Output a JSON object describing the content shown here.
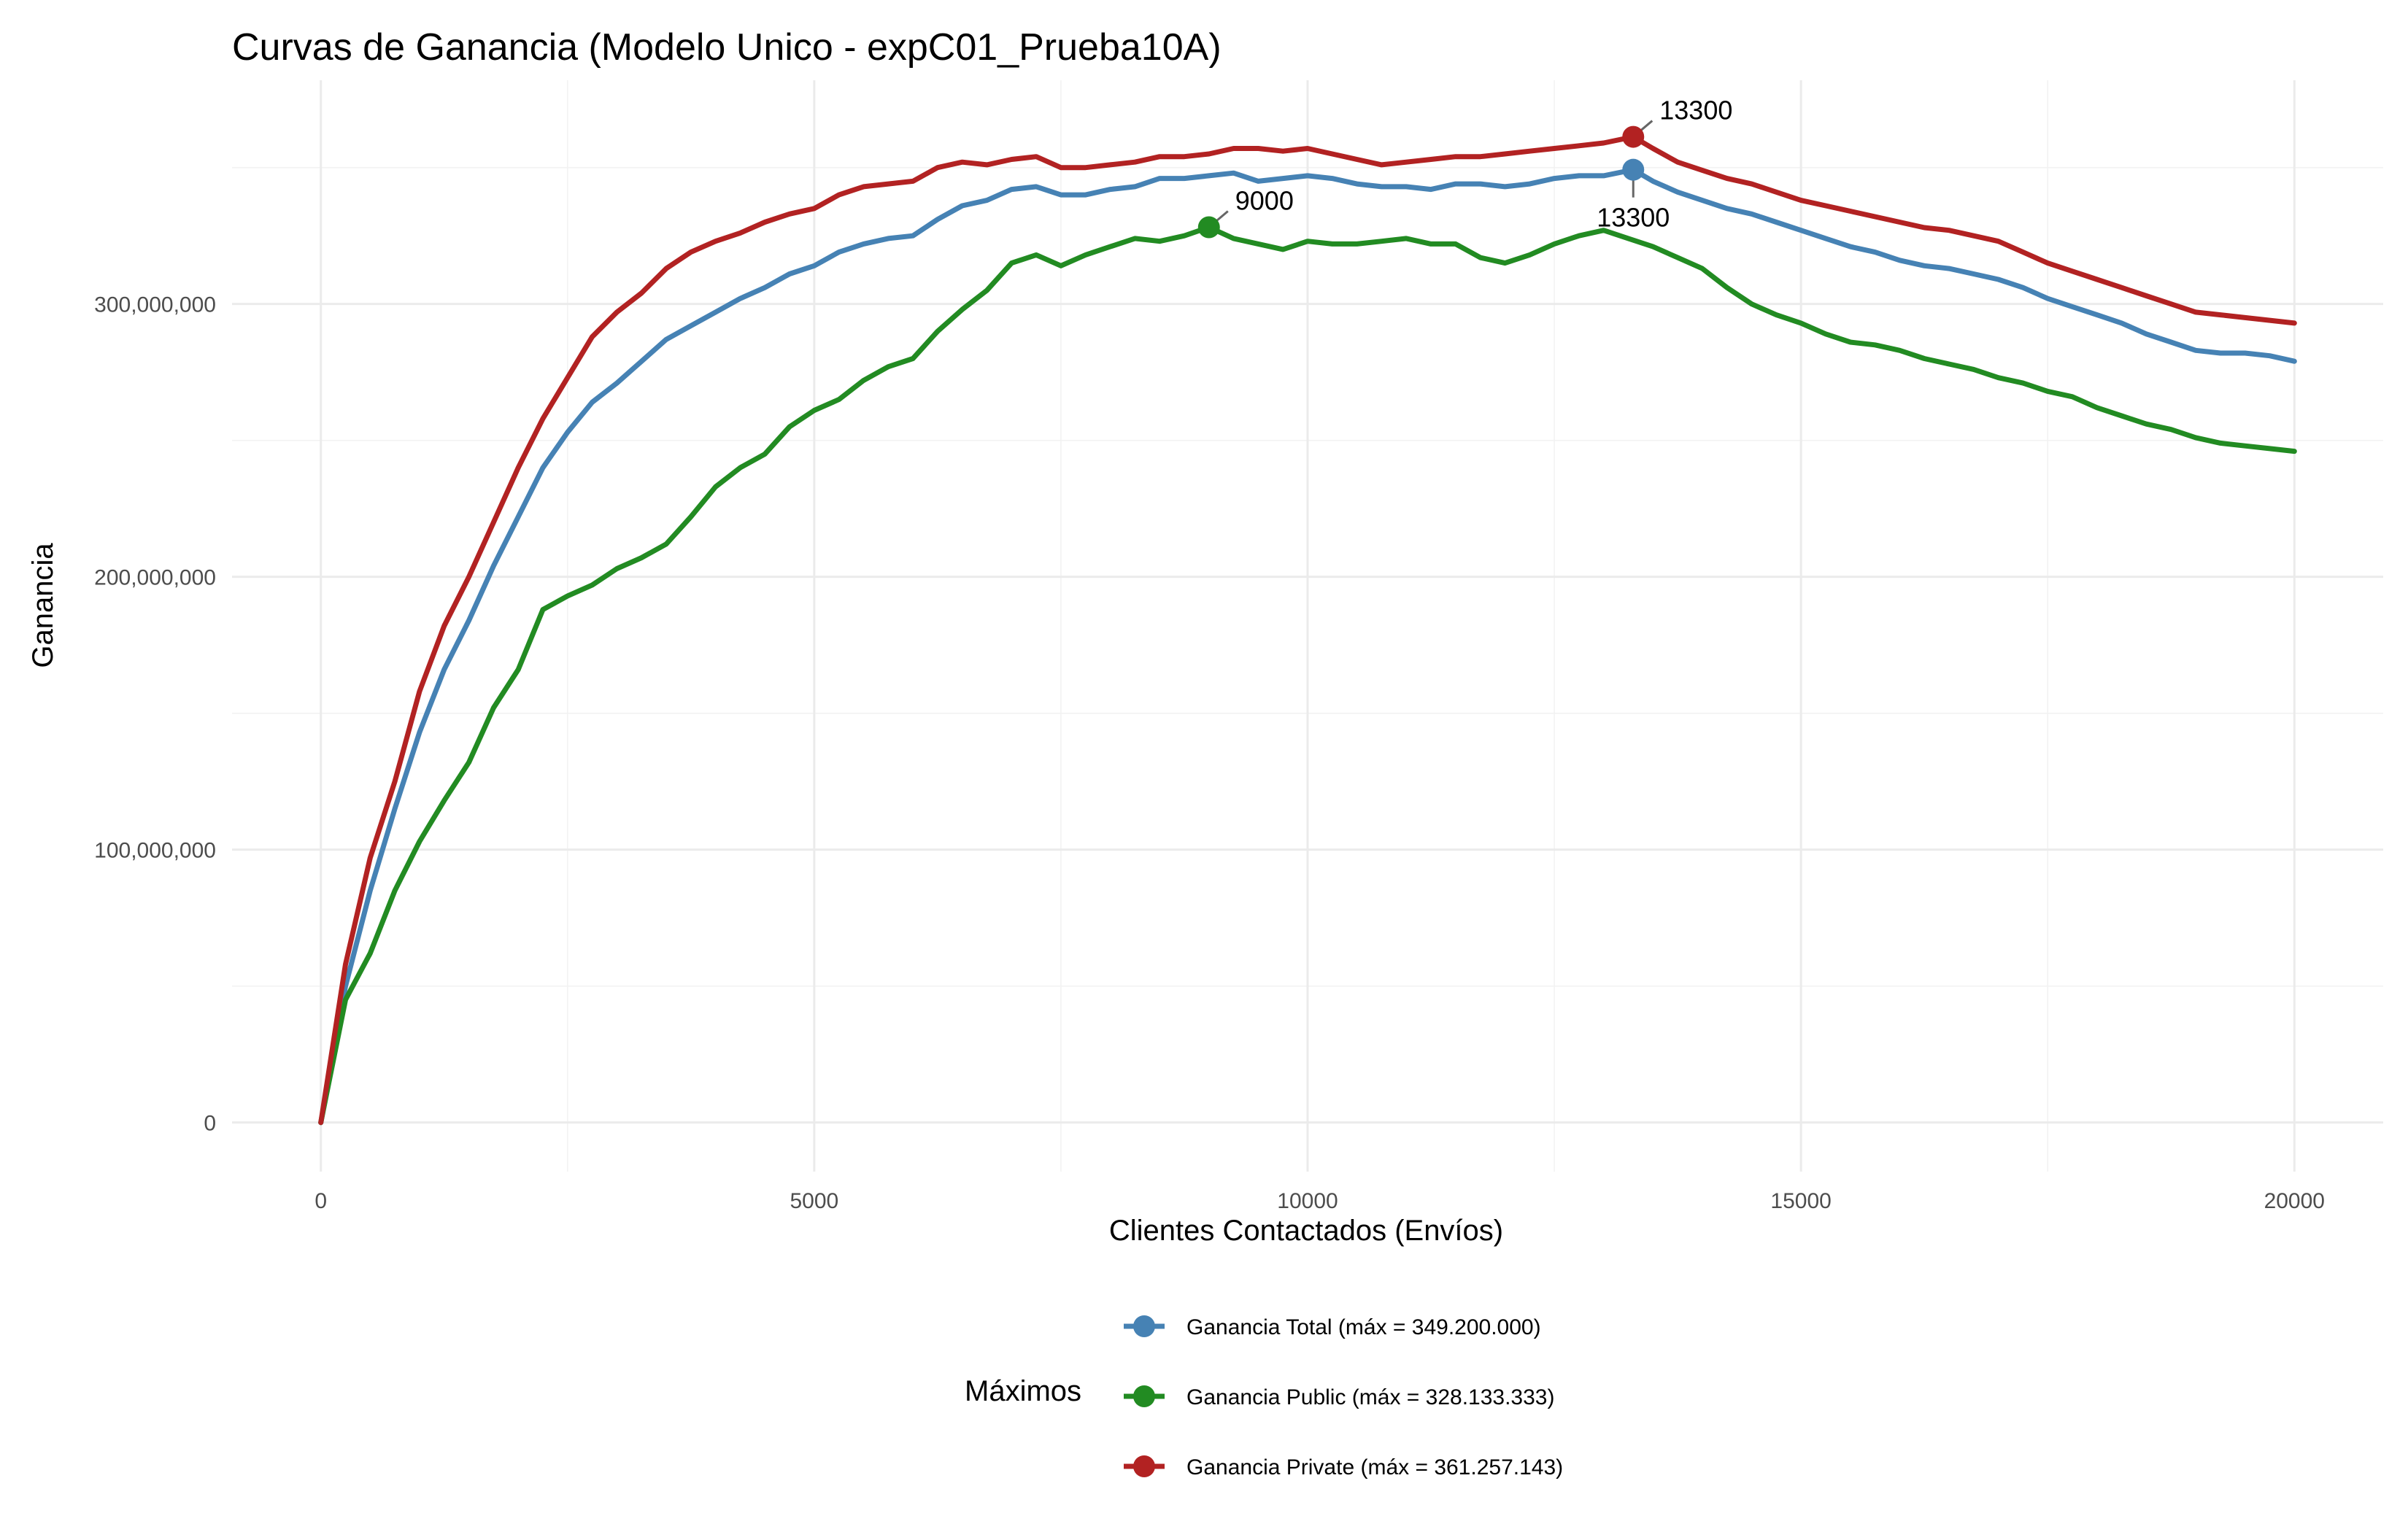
{
  "chart_data": {
    "type": "line",
    "title": "Curvas de Ganancia (Modelo Unico - expC01_Prueba10A)",
    "xlabel": "Clientes Contactados (Envíos)",
    "ylabel": "Ganancia",
    "xlim": [
      -900,
      20900
    ],
    "ylim": [
      -18000000,
      382000000
    ],
    "x_ticks": [
      0,
      5000,
      10000,
      15000,
      20000
    ],
    "x_tick_labels": [
      "0",
      "5000",
      "10000",
      "15000",
      "20000"
    ],
    "y_ticks": [
      0,
      100000000,
      200000000,
      300000000
    ],
    "y_tick_labels": [
      "0",
      "100,000,000",
      "200,000,000",
      "300,000,000"
    ],
    "grid": true,
    "legend": {
      "title": "Máximos",
      "position": "bottom"
    },
    "series": [
      {
        "name": "Ganancia Total (máx = 349.200.000)",
        "color": "#4682B4",
        "points": [
          [
            0,
            0
          ],
          [
            250,
            50000000
          ],
          [
            500,
            85000000
          ],
          [
            750,
            115000000
          ],
          [
            1000,
            143000000
          ],
          [
            1250,
            166000000
          ],
          [
            1500,
            184000000
          ],
          [
            1750,
            204000000
          ],
          [
            2000,
            222000000
          ],
          [
            2250,
            240000000
          ],
          [
            2500,
            253000000
          ],
          [
            2750,
            264000000
          ],
          [
            3000,
            271000000
          ],
          [
            3250,
            279000000
          ],
          [
            3500,
            287000000
          ],
          [
            3750,
            292000000
          ],
          [
            4000,
            297000000
          ],
          [
            4250,
            302000000
          ],
          [
            4500,
            306000000
          ],
          [
            4750,
            311000000
          ],
          [
            5000,
            314000000
          ],
          [
            5250,
            319000000
          ],
          [
            5500,
            322000000
          ],
          [
            5750,
            324000000
          ],
          [
            6000,
            325000000
          ],
          [
            6250,
            331000000
          ],
          [
            6500,
            336000000
          ],
          [
            6750,
            338000000
          ],
          [
            7000,
            342000000
          ],
          [
            7250,
            343000000
          ],
          [
            7500,
            340000000
          ],
          [
            7750,
            340000000
          ],
          [
            8000,
            342000000
          ],
          [
            8250,
            343000000
          ],
          [
            8500,
            346000000
          ],
          [
            8750,
            346000000
          ],
          [
            9000,
            347000000
          ],
          [
            9250,
            348000000
          ],
          [
            9500,
            345000000
          ],
          [
            9750,
            346000000
          ],
          [
            10000,
            347000000
          ],
          [
            10250,
            346000000
          ],
          [
            10500,
            344000000
          ],
          [
            10750,
            343000000
          ],
          [
            11000,
            343000000
          ],
          [
            11250,
            342000000
          ],
          [
            11500,
            344000000
          ],
          [
            11750,
            344000000
          ],
          [
            12000,
            343000000
          ],
          [
            12250,
            344000000
          ],
          [
            12500,
            346000000
          ],
          [
            12750,
            347000000
          ],
          [
            13000,
            347000000
          ],
          [
            13300,
            349200000
          ],
          [
            13500,
            345000000
          ],
          [
            13750,
            341000000
          ],
          [
            14000,
            338000000
          ],
          [
            14250,
            335000000
          ],
          [
            14500,
            333000000
          ],
          [
            14750,
            330000000
          ],
          [
            15000,
            327000000
          ],
          [
            15250,
            324000000
          ],
          [
            15500,
            321000000
          ],
          [
            15750,
            319000000
          ],
          [
            16000,
            316000000
          ],
          [
            16250,
            314000000
          ],
          [
            16500,
            313000000
          ],
          [
            16750,
            311000000
          ],
          [
            17000,
            309000000
          ],
          [
            17250,
            306000000
          ],
          [
            17500,
            302000000
          ],
          [
            17750,
            299000000
          ],
          [
            18000,
            296000000
          ],
          [
            18250,
            293000000
          ],
          [
            18500,
            289000000
          ],
          [
            18750,
            286000000
          ],
          [
            19000,
            283000000
          ],
          [
            19250,
            282000000
          ],
          [
            19500,
            282000000
          ],
          [
            19750,
            281000000
          ],
          [
            20000,
            279000000
          ]
        ]
      },
      {
        "name": "Ganancia Public (máx = 328.133.333)",
        "color": "#228B22",
        "points": [
          [
            0,
            0
          ],
          [
            250,
            45000000
          ],
          [
            500,
            62000000
          ],
          [
            750,
            85000000
          ],
          [
            1000,
            103000000
          ],
          [
            1250,
            118000000
          ],
          [
            1500,
            132000000
          ],
          [
            1750,
            152000000
          ],
          [
            2000,
            166000000
          ],
          [
            2250,
            188000000
          ],
          [
            2500,
            193000000
          ],
          [
            2750,
            197000000
          ],
          [
            3000,
            203000000
          ],
          [
            3250,
            207000000
          ],
          [
            3500,
            212000000
          ],
          [
            3750,
            222000000
          ],
          [
            4000,
            233000000
          ],
          [
            4250,
            240000000
          ],
          [
            4500,
            245000000
          ],
          [
            4750,
            255000000
          ],
          [
            5000,
            261000000
          ],
          [
            5250,
            265000000
          ],
          [
            5500,
            272000000
          ],
          [
            5750,
            277000000
          ],
          [
            6000,
            280000000
          ],
          [
            6250,
            290000000
          ],
          [
            6500,
            298000000
          ],
          [
            6750,
            305000000
          ],
          [
            7000,
            315000000
          ],
          [
            7250,
            318000000
          ],
          [
            7500,
            314000000
          ],
          [
            7750,
            318000000
          ],
          [
            8000,
            321000000
          ],
          [
            8250,
            324000000
          ],
          [
            8500,
            323000000
          ],
          [
            8750,
            325000000
          ],
          [
            9000,
            328133333
          ],
          [
            9250,
            324000000
          ],
          [
            9500,
            322000000
          ],
          [
            9750,
            320000000
          ],
          [
            10000,
            323000000
          ],
          [
            10250,
            322000000
          ],
          [
            10500,
            322000000
          ],
          [
            10750,
            323000000
          ],
          [
            11000,
            324000000
          ],
          [
            11250,
            322000000
          ],
          [
            11500,
            322000000
          ],
          [
            11750,
            317000000
          ],
          [
            12000,
            315000000
          ],
          [
            12250,
            318000000
          ],
          [
            12500,
            322000000
          ],
          [
            12750,
            325000000
          ],
          [
            13000,
            327000000
          ],
          [
            13250,
            324000000
          ],
          [
            13500,
            321000000
          ],
          [
            13750,
            317000000
          ],
          [
            14000,
            313000000
          ],
          [
            14250,
            306000000
          ],
          [
            14500,
            300000000
          ],
          [
            14750,
            296000000
          ],
          [
            15000,
            293000000
          ],
          [
            15250,
            289000000
          ],
          [
            15500,
            286000000
          ],
          [
            15750,
            285000000
          ],
          [
            16000,
            283000000
          ],
          [
            16250,
            280000000
          ],
          [
            16500,
            278000000
          ],
          [
            16750,
            276000000
          ],
          [
            17000,
            273000000
          ],
          [
            17250,
            271000000
          ],
          [
            17500,
            268000000
          ],
          [
            17750,
            266000000
          ],
          [
            18000,
            262000000
          ],
          [
            18250,
            259000000
          ],
          [
            18500,
            256000000
          ],
          [
            18750,
            254000000
          ],
          [
            19000,
            251000000
          ],
          [
            19250,
            249000000
          ],
          [
            19500,
            248000000
          ],
          [
            19750,
            247000000
          ],
          [
            20000,
            246000000
          ]
        ]
      },
      {
        "name": "Ganancia Private (máx = 361.257.143)",
        "color": "#B22222",
        "points": [
          [
            0,
            0
          ],
          [
            250,
            58000000
          ],
          [
            500,
            97000000
          ],
          [
            750,
            125000000
          ],
          [
            1000,
            158000000
          ],
          [
            1250,
            182000000
          ],
          [
            1500,
            200000000
          ],
          [
            1750,
            220000000
          ],
          [
            2000,
            240000000
          ],
          [
            2250,
            258000000
          ],
          [
            2500,
            273000000
          ],
          [
            2750,
            288000000
          ],
          [
            3000,
            297000000
          ],
          [
            3250,
            304000000
          ],
          [
            3500,
            313000000
          ],
          [
            3750,
            319000000
          ],
          [
            4000,
            323000000
          ],
          [
            4250,
            326000000
          ],
          [
            4500,
            330000000
          ],
          [
            4750,
            333000000
          ],
          [
            5000,
            335000000
          ],
          [
            5250,
            340000000
          ],
          [
            5500,
            343000000
          ],
          [
            5750,
            344000000
          ],
          [
            6000,
            345000000
          ],
          [
            6250,
            350000000
          ],
          [
            6500,
            352000000
          ],
          [
            6750,
            351000000
          ],
          [
            7000,
            353000000
          ],
          [
            7250,
            354000000
          ],
          [
            7500,
            350000000
          ],
          [
            7750,
            350000000
          ],
          [
            8000,
            351000000
          ],
          [
            8250,
            352000000
          ],
          [
            8500,
            354000000
          ],
          [
            8750,
            354000000
          ],
          [
            9000,
            355000000
          ],
          [
            9250,
            357000000
          ],
          [
            9500,
            357000000
          ],
          [
            9750,
            356000000
          ],
          [
            10000,
            357000000
          ],
          [
            10250,
            355000000
          ],
          [
            10500,
            353000000
          ],
          [
            10750,
            351000000
          ],
          [
            11000,
            352000000
          ],
          [
            11250,
            353000000
          ],
          [
            11500,
            354000000
          ],
          [
            11750,
            354000000
          ],
          [
            12000,
            355000000
          ],
          [
            12250,
            356000000
          ],
          [
            12500,
            357000000
          ],
          [
            12750,
            358000000
          ],
          [
            13000,
            359000000
          ],
          [
            13300,
            361257143
          ],
          [
            13500,
            357000000
          ],
          [
            13750,
            352000000
          ],
          [
            14000,
            349000000
          ],
          [
            14250,
            346000000
          ],
          [
            14500,
            344000000
          ],
          [
            14750,
            341000000
          ],
          [
            15000,
            338000000
          ],
          [
            15250,
            336000000
          ],
          [
            15500,
            334000000
          ],
          [
            15750,
            332000000
          ],
          [
            16000,
            330000000
          ],
          [
            16250,
            328000000
          ],
          [
            16500,
            327000000
          ],
          [
            16750,
            325000000
          ],
          [
            17000,
            323000000
          ],
          [
            17250,
            319000000
          ],
          [
            17500,
            315000000
          ],
          [
            17750,
            312000000
          ],
          [
            18000,
            309000000
          ],
          [
            18250,
            306000000
          ],
          [
            18500,
            303000000
          ],
          [
            18750,
            300000000
          ],
          [
            19000,
            297000000
          ],
          [
            19250,
            296000000
          ],
          [
            19500,
            295000000
          ],
          [
            19750,
            294000000
          ],
          [
            20000,
            293000000
          ]
        ]
      }
    ],
    "max_points": [
      {
        "series": "Ganancia Total (máx = 349.200.000)",
        "x": 13300,
        "y": 349200000,
        "label": "13300",
        "color": "#4682B4"
      },
      {
        "series": "Ganancia Public (máx = 328.133.333)",
        "x": 9000,
        "y": 328133333,
        "label": "9000",
        "color": "#228B22"
      },
      {
        "series": "Ganancia Private (máx = 361.257.143)",
        "x": 13300,
        "y": 361257143,
        "label": "13300",
        "color": "#B22222"
      }
    ]
  }
}
